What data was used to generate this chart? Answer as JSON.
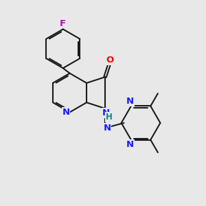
{
  "background_color": "#e8e8e8",
  "bond_color": "#1a1a1a",
  "bond_width": 1.5,
  "atom_colors": {
    "C": "#1a1a1a",
    "N": "#1a1aff",
    "O": "#ff0000",
    "F": "#cc00cc",
    "H": "#008b8b"
  },
  "font_size": 8.5,
  "fig_size": [
    3.0,
    3.0
  ],
  "dpi": 100,
  "bl": 0.95
}
